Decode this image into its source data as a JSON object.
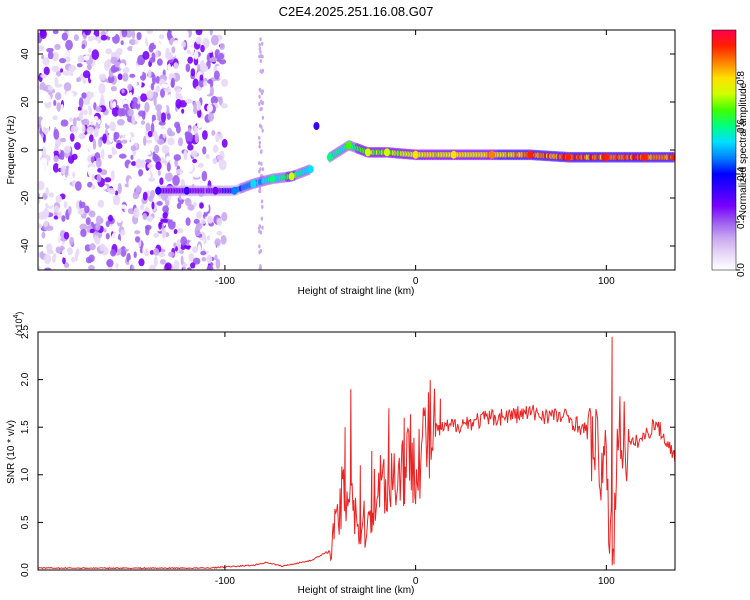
{
  "title": "C2E4.2025.251.16.08.G07",
  "chart_data": [
    {
      "type": "heatmap",
      "xlabel": "Height of straight line (km)",
      "ylabel": "Frequency (Hz)",
      "xlim": [
        -198,
        136
      ],
      "ylim": [
        -50,
        50
      ],
      "xticks": [
        -100,
        0,
        100
      ],
      "yticks": [
        -40,
        -20,
        0,
        20,
        40
      ],
      "colorbar": {
        "label": "Normalized spectral amplitude",
        "ticks": [
          0.0,
          0.2,
          0.4,
          0.6,
          0.8
        ],
        "range": [
          0,
          1
        ],
        "colors": [
          "#ffffff",
          "#e8d8f8",
          "#c9a8f0",
          "#9b5cf0",
          "#7a00ff",
          "#3a00ff",
          "#0000ff",
          "#0080ff",
          "#00e0ff",
          "#00ff80",
          "#40ff00",
          "#d0ff00",
          "#ffe000",
          "#ff8000",
          "#ff2000",
          "#ff0050"
        ]
      },
      "noise_region_x": [
        -198,
        -100
      ],
      "ridge": [
        {
          "x": -135,
          "f": -17,
          "a": 0.3
        },
        {
          "x": -120,
          "f": -17,
          "a": 0.3
        },
        {
          "x": -105,
          "f": -17,
          "a": 0.25
        },
        {
          "x": -95,
          "f": -17,
          "a": 0.45
        },
        {
          "x": -85,
          "f": -14,
          "a": 0.55
        },
        {
          "x": -75,
          "f": -12,
          "a": 0.6
        },
        {
          "x": -65,
          "f": -11,
          "a": 0.7
        },
        {
          "x": -55,
          "f": -8,
          "a": 0.55
        },
        {
          "x": -52,
          "f": 10,
          "a": 0.3
        },
        {
          "x": -45,
          "f": -3,
          "a": 0.6
        },
        {
          "x": -35,
          "f": 2,
          "a": 0.65
        },
        {
          "x": -25,
          "f": -1,
          "a": 0.7
        },
        {
          "x": -15,
          "f": -1,
          "a": 0.75
        },
        {
          "x": 0,
          "f": -2,
          "a": 0.8
        },
        {
          "x": 20,
          "f": -2,
          "a": 0.82
        },
        {
          "x": 40,
          "f": -2,
          "a": 0.85
        },
        {
          "x": 60,
          "f": -2,
          "a": 0.9
        },
        {
          "x": 80,
          "f": -3,
          "a": 0.95
        },
        {
          "x": 100,
          "f": -3,
          "a": 0.95
        },
        {
          "x": 120,
          "f": -3,
          "a": 0.95
        },
        {
          "x": 136,
          "f": -3,
          "a": 0.95
        }
      ]
    },
    {
      "type": "line",
      "xlabel": "Height of straight line (km)",
      "ylabel": "SNR (10 * v/v)",
      "yunit": "(x10",
      "yunit_exp": "4",
      "yunit_close": ")",
      "xlim": [
        -198,
        136
      ],
      "ylim": [
        0,
        2.5
      ],
      "xticks": [
        -100,
        0,
        100
      ],
      "yticks": [
        0.0,
        0.5,
        1.0,
        1.5,
        2.0,
        2.5
      ],
      "color": "#ee2222",
      "envelope": [
        {
          "x": -198,
          "y": 0.02
        },
        {
          "x": -110,
          "y": 0.02
        },
        {
          "x": -85,
          "y": 0.05
        },
        {
          "x": -78,
          "y": 0.08
        },
        {
          "x": -70,
          "y": 0.04
        },
        {
          "x": -55,
          "y": 0.1
        },
        {
          "x": -45,
          "y": 0.2
        },
        {
          "x": -40,
          "y": 0.6
        },
        {
          "x": -34,
          "y": 1.0
        },
        {
          "x": -30,
          "y": 0.4
        },
        {
          "x": -25,
          "y": 0.5
        },
        {
          "x": -20,
          "y": 0.9
        },
        {
          "x": -10,
          "y": 1.0
        },
        {
          "x": 0,
          "y": 1.25
        },
        {
          "x": 10,
          "y": 1.45
        },
        {
          "x": 20,
          "y": 1.52
        },
        {
          "x": 40,
          "y": 1.6
        },
        {
          "x": 60,
          "y": 1.65
        },
        {
          "x": 80,
          "y": 1.6
        },
        {
          "x": 90,
          "y": 1.45
        },
        {
          "x": 96,
          "y": 1.2
        },
        {
          "x": 100,
          "y": 1.0
        },
        {
          "x": 103,
          "y": 0.1
        },
        {
          "x": 106,
          "y": 1.5
        },
        {
          "x": 112,
          "y": 1.3
        },
        {
          "x": 120,
          "y": 1.4
        },
        {
          "x": 126,
          "y": 1.55
        },
        {
          "x": 130,
          "y": 1.4
        },
        {
          "x": 136,
          "y": 1.2
        }
      ],
      "spikes": [
        {
          "x": -37,
          "y": 1.5
        },
        {
          "x": -34,
          "y": 1.9
        },
        {
          "x": -29,
          "y": 1.1
        },
        {
          "x": -23,
          "y": 1.25
        },
        {
          "x": -14,
          "y": 1.7
        },
        {
          "x": -6,
          "y": 1.6
        },
        {
          "x": 13,
          "y": 1.8
        },
        {
          "x": 103,
          "y": 2.45
        },
        {
          "x": 104,
          "y": 0.06
        }
      ]
    }
  ]
}
